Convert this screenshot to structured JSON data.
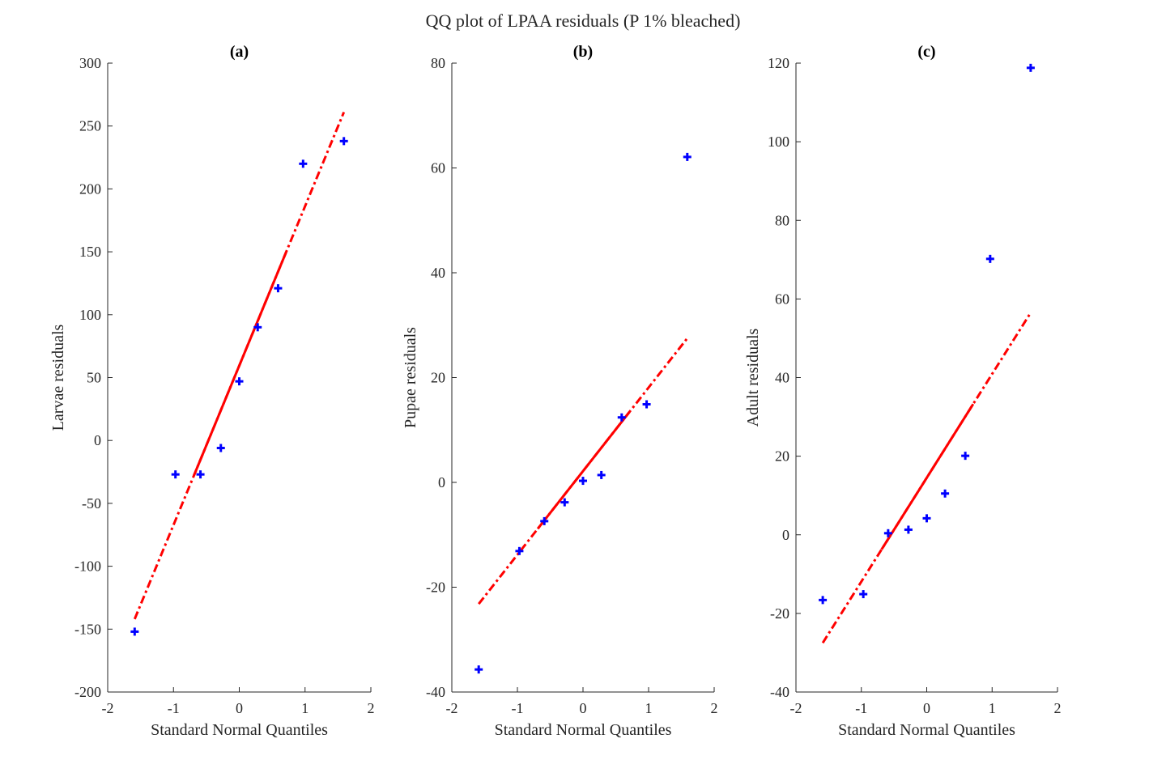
{
  "figure": {
    "title": "QQ plot of LPAA residuals (P 1% bleached)",
    "colors": {
      "points": "#0000ff",
      "line": "#ff0000",
      "axis": "#262626"
    }
  },
  "chart_data": [
    {
      "type": "scatter",
      "title": "(a)",
      "xlabel": "Standard Normal Quantiles",
      "ylabel": "Larvae residuals",
      "xlim": [
        -2,
        2
      ],
      "ylim": [
        -200,
        300
      ],
      "xticks": [
        "-2",
        "-1",
        "0",
        "1",
        "2"
      ],
      "yticks": [
        "-200",
        "-150",
        "-100",
        "-50",
        "0",
        "50",
        "100",
        "150",
        "200",
        "250",
        "300"
      ],
      "points": {
        "x": [
          -1.59,
          -0.97,
          -0.59,
          -0.28,
          0,
          0.28,
          0.59,
          0.97,
          1.59
        ],
        "y": [
          -152,
          -27,
          -27,
          -6,
          47,
          90,
          121,
          220,
          238
        ]
      },
      "fit_line": {
        "x": [
          -1.59,
          1.59
        ],
        "y": [
          -142,
          261
        ],
        "solid_x": [
          -0.69,
          0.71
        ]
      }
    },
    {
      "type": "scatter",
      "title": "(b)",
      "xlabel": "Standard Normal Quantiles",
      "ylabel": "Pupae residuals",
      "xlim": [
        -2,
        2
      ],
      "ylim": [
        -40,
        80
      ],
      "xticks": [
        "-2",
        "-1",
        "0",
        "1",
        "2"
      ],
      "yticks": [
        "-40",
        "-20",
        "0",
        "20",
        "40",
        "60",
        "80"
      ],
      "points": {
        "x": [
          -1.59,
          -0.97,
          -0.59,
          -0.28,
          0,
          0.28,
          0.59,
          0.97,
          1.59
        ],
        "y": [
          -35.7,
          -13.1,
          -7.4,
          -3.8,
          0.3,
          1.4,
          12.4,
          14.9,
          62.1
        ]
      },
      "fit_line": {
        "x": [
          -1.59,
          1.59
        ],
        "y": [
          -23.2,
          27.5
        ],
        "solid_x": [
          -0.69,
          0.71
        ]
      }
    },
    {
      "type": "scatter",
      "title": "(c)",
      "xlabel": "Standard Normal Quantiles",
      "ylabel": "Adult residuals",
      "xlim": [
        -2,
        2
      ],
      "ylim": [
        -40,
        120
      ],
      "xticks": [
        "-2",
        "-1",
        "0",
        "1",
        "2"
      ],
      "yticks": [
        "-40",
        "-20",
        "0",
        "20",
        "40",
        "60",
        "80",
        "100",
        "120"
      ],
      "points": {
        "x": [
          -1.59,
          -0.97,
          -0.59,
          -0.28,
          0,
          0.28,
          0.59,
          0.97,
          1.59
        ],
        "y": [
          -16.6,
          -15.1,
          0.4,
          1.3,
          4.2,
          10.5,
          20.1,
          70.2,
          118.8
        ]
      },
      "fit_line": {
        "x": [
          -1.59,
          1.59
        ],
        "y": [
          -27.5,
          56.5
        ],
        "solid_x": [
          -0.69,
          0.71
        ]
      }
    }
  ]
}
